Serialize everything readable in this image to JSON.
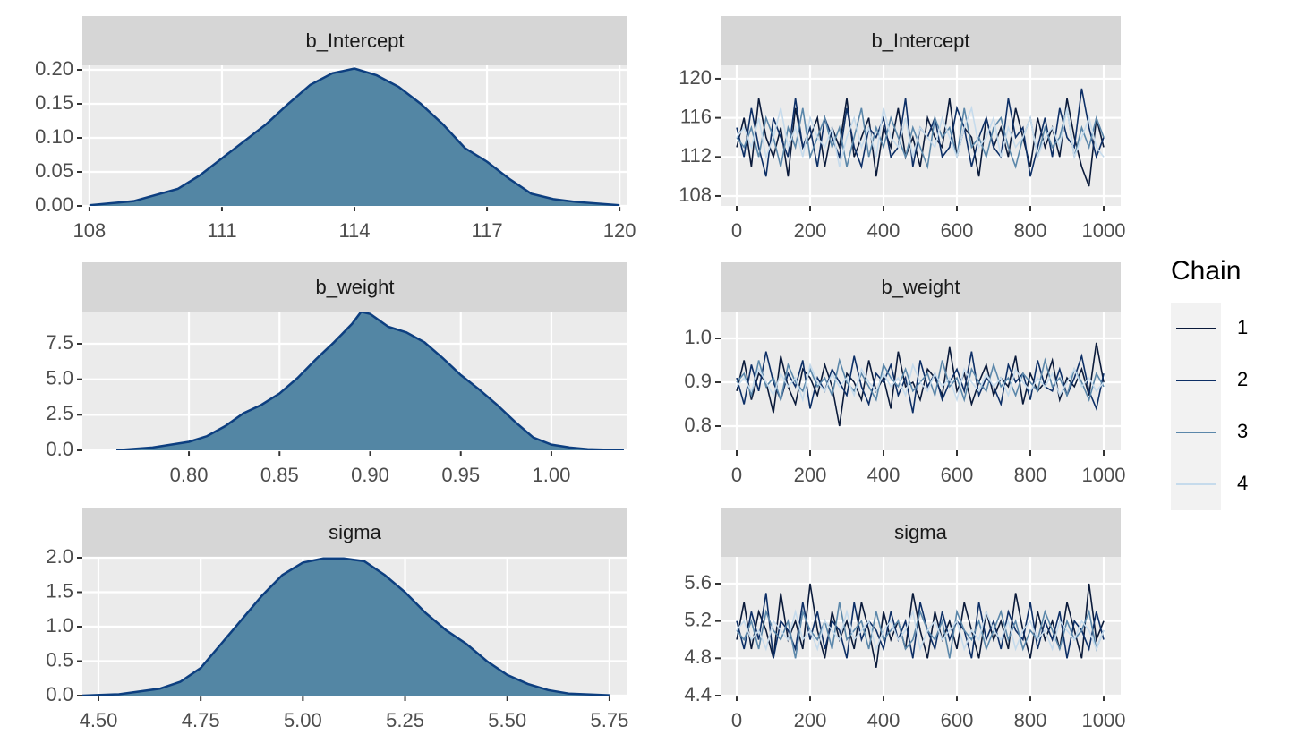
{
  "chart_data": [
    {
      "type": "area",
      "title": "b_Intercept",
      "color": "#5386a4",
      "line_color": "#0d3f80",
      "x": [
        108,
        109,
        110,
        110.5,
        111,
        111.5,
        112,
        112.5,
        113,
        113.5,
        114,
        114.5,
        115,
        115.5,
        116,
        116.5,
        117,
        117.5,
        118,
        118.5,
        119,
        120
      ],
      "values": [
        0.001,
        0.007,
        0.025,
        0.045,
        0.07,
        0.095,
        0.12,
        0.15,
        0.178,
        0.195,
        0.202,
        0.192,
        0.175,
        0.15,
        0.12,
        0.085,
        0.065,
        0.04,
        0.018,
        0.01,
        0.006,
        0.001
      ],
      "xlim": [
        107.84,
        120.18
      ],
      "ylim": [
        0,
        0.2066
      ],
      "xticks": [
        108,
        111,
        114,
        117,
        120
      ],
      "yticks": [
        {
          "value": 0,
          "label": "0.00"
        },
        0.05,
        {
          "value": 0.1,
          "label": "0.10"
        },
        0.15,
        {
          "value": 0.2,
          "label": "0.20"
        }
      ],
      "grid": true
    },
    {
      "type": "line",
      "title": "b_Intercept",
      "legend_title": "Chain",
      "legend": "right",
      "x": [
        0,
        20,
        40,
        60,
        80,
        100,
        120,
        140,
        160,
        180,
        200,
        220,
        240,
        260,
        280,
        300,
        320,
        340,
        360,
        380,
        400,
        420,
        440,
        460,
        480,
        500,
        520,
        540,
        560,
        580,
        600,
        620,
        640,
        660,
        680,
        700,
        720,
        740,
        760,
        780,
        800,
        820,
        840,
        860,
        880,
        900,
        920,
        940,
        960,
        980,
        1000
      ],
      "series": [
        {
          "name": "1",
          "color": "#0a1a3a",
          "values": [
            113,
            116,
            111,
            118,
            114,
            112,
            115,
            110,
            117,
            113,
            114,
            116,
            111,
            115,
            113,
            118,
            112,
            114,
            116,
            110,
            115,
            113,
            117,
            112,
            114,
            111,
            116,
            114,
            113,
            118,
            112,
            115,
            114,
            110,
            116,
            113,
            115,
            112,
            117,
            114,
            111,
            116,
            113,
            115,
            112,
            118,
            114,
            111,
            109,
            116,
            113
          ]
        },
        {
          "name": "2",
          "color": "#0d2f66",
          "values": [
            115,
            112,
            117,
            113,
            110,
            116,
            114,
            112,
            118,
            113,
            115,
            111,
            116,
            114,
            112,
            117,
            113,
            111,
            115,
            114,
            116,
            112,
            113,
            118,
            111,
            115,
            114,
            116,
            112,
            113,
            117,
            115,
            111,
            114,
            116,
            113,
            112,
            118,
            114,
            115,
            110,
            113,
            116,
            112,
            117,
            114,
            113,
            119,
            115,
            112,
            114
          ]
        },
        {
          "name": "3",
          "color": "#5b87aa",
          "values": [
            114,
            113,
            115,
            112,
            116,
            114,
            111,
            115,
            113,
            117,
            112,
            114,
            116,
            113,
            115,
            111,
            114,
            117,
            112,
            115,
            113,
            116,
            114,
            112,
            115,
            113,
            111,
            116,
            114,
            115,
            112,
            117,
            113,
            114,
            112,
            115,
            116,
            113,
            111,
            114,
            116,
            112,
            115,
            113,
            114,
            117,
            112,
            115,
            113,
            116,
            114
          ]
        },
        {
          "name": "4",
          "color": "#c6dbec",
          "values": [
            114,
            115,
            113,
            116,
            112,
            114,
            117,
            113,
            115,
            112,
            116,
            114,
            113,
            115,
            111,
            114,
            116,
            113,
            115,
            112,
            117,
            114,
            113,
            116,
            112,
            115,
            114,
            113,
            116,
            114,
            112,
            115,
            117,
            113,
            114,
            116,
            112,
            115,
            113,
            114,
            116,
            112,
            114,
            115,
            113,
            117,
            112,
            114,
            116,
            113,
            112
          ]
        }
      ],
      "xlim": [
        -43.9,
        1046.3
      ],
      "ylim": [
        106.99,
        121.37
      ],
      "xticks": [
        0,
        200,
        400,
        600,
        800,
        1000
      ],
      "yticks": [
        108,
        112,
        116,
        120
      ],
      "grid": true
    },
    {
      "type": "area",
      "title": "b_weight",
      "color": "#5386a4",
      "line_color": "#0d3f80",
      "x": [
        0.76,
        0.78,
        0.8,
        0.81,
        0.82,
        0.83,
        0.84,
        0.85,
        0.86,
        0.87,
        0.88,
        0.89,
        0.895,
        0.9,
        0.91,
        0.92,
        0.93,
        0.94,
        0.95,
        0.96,
        0.97,
        0.98,
        0.99,
        1.0,
        1.01,
        1.02,
        1.04
      ],
      "values": [
        0.01,
        0.2,
        0.6,
        1.0,
        1.7,
        2.6,
        3.2,
        4.0,
        5.1,
        6.4,
        7.6,
        8.9,
        9.75,
        9.6,
        8.7,
        8.3,
        7.6,
        6.5,
        5.3,
        4.3,
        3.2,
        2.0,
        0.9,
        0.4,
        0.2,
        0.08,
        0.01
      ],
      "xlim": [
        0.7412,
        1.042
      ],
      "ylim": [
        0,
        9.77
      ],
      "xticks": [
        {
          "value": 0.8,
          "label": "0.80"
        },
        0.85,
        {
          "value": 0.9,
          "label": "0.90"
        },
        0.95,
        {
          "value": 1,
          "label": "1.00"
        }
      ],
      "yticks": [
        {
          "value": 0,
          "label": "0.0"
        },
        2.5,
        {
          "value": 5,
          "label": "5.0"
        },
        7.5
      ],
      "grid": true
    },
    {
      "type": "line",
      "title": "b_weight",
      "x": [
        0,
        20,
        40,
        60,
        80,
        100,
        120,
        140,
        160,
        180,
        200,
        220,
        240,
        260,
        280,
        300,
        320,
        340,
        360,
        380,
        400,
        420,
        440,
        460,
        480,
        500,
        520,
        540,
        560,
        580,
        600,
        620,
        640,
        660,
        680,
        700,
        720,
        740,
        760,
        780,
        800,
        820,
        840,
        860,
        880,
        900,
        920,
        940,
        960,
        980,
        1000
      ],
      "series": [
        {
          "color": "#0a1a3a",
          "values": [
            0.88,
            0.95,
            0.86,
            0.92,
            0.9,
            0.83,
            0.96,
            0.89,
            0.85,
            0.93,
            0.91,
            0.87,
            0.94,
            0.89,
            0.8,
            0.92,
            0.9,
            0.86,
            0.95,
            0.88,
            0.91,
            0.84,
            0.97,
            0.89,
            0.9,
            0.86,
            0.93,
            0.91,
            0.87,
            0.98,
            0.88,
            0.92,
            0.85,
            0.9,
            0.94,
            0.87,
            0.91,
            0.89,
            0.96,
            0.85,
            0.92,
            0.88,
            0.9,
            0.95,
            0.86,
            0.91,
            0.89,
            0.93,
            0.87,
            0.99,
            0.9
          ]
        },
        {
          "color": "#0d2f66",
          "values": [
            0.91,
            0.85,
            0.94,
            0.88,
            0.97,
            0.9,
            0.86,
            0.92,
            0.89,
            0.95,
            0.84,
            0.91,
            0.88,
            0.93,
            0.9,
            0.87,
            0.96,
            0.89,
            0.85,
            0.92,
            0.9,
            0.94,
            0.87,
            0.91,
            0.83,
            0.95,
            0.89,
            0.92,
            0.86,
            0.9,
            0.93,
            0.88,
            0.97,
            0.87,
            0.91,
            0.89,
            0.85,
            0.94,
            0.9,
            0.92,
            0.86,
            0.95,
            0.89,
            0.88,
            0.93,
            0.87,
            0.91,
            0.96,
            0.88,
            0.84,
            0.92
          ]
        },
        {
          "color": "#5b87aa",
          "values": [
            0.9,
            0.92,
            0.87,
            0.95,
            0.89,
            0.91,
            0.86,
            0.94,
            0.9,
            0.88,
            0.93,
            0.89,
            0.91,
            0.87,
            0.95,
            0.9,
            0.88,
            0.92,
            0.89,
            0.86,
            0.94,
            0.91,
            0.89,
            0.93,
            0.88,
            0.9,
            0.92,
            0.87,
            0.95,
            0.89,
            0.91,
            0.86,
            0.93,
            0.9,
            0.88,
            0.94,
            0.89,
            0.91,
            0.87,
            0.92,
            0.9,
            0.88,
            0.95,
            0.89,
            0.91,
            0.87,
            0.93,
            0.9,
            0.86,
            0.92,
            0.89
          ]
        },
        {
          "color": "#c6dbec",
          "values": [
            0.89,
            0.91,
            0.88,
            0.93,
            0.9,
            0.87,
            0.92,
            0.89,
            0.91,
            0.86,
            0.94,
            0.9,
            0.88,
            0.92,
            0.89,
            0.91,
            0.87,
            0.93,
            0.9,
            0.88,
            0.92,
            0.89,
            0.91,
            0.87,
            0.94,
            0.9,
            0.88,
            0.92,
            0.89,
            0.91,
            0.86,
            0.93,
            0.9,
            0.88,
            0.92,
            0.89,
            0.91,
            0.87,
            0.93,
            0.9,
            0.88,
            0.91,
            0.89,
            0.92,
            0.87,
            0.9,
            0.93,
            0.89,
            0.91,
            0.88,
            0.9
          ]
        }
      ],
      "xlim": [
        -43.9,
        1046.3
      ],
      "ylim": [
        0.7449,
        1.0612
      ],
      "xticks": [
        0,
        200,
        400,
        600,
        800,
        1000
      ],
      "yticks": [
        0.8,
        0.9,
        {
          "value": 1,
          "label": "1.0"
        }
      ],
      "grid": true
    },
    {
      "type": "area",
      "title": "sigma",
      "color": "#5386a4",
      "line_color": "#0d3f80",
      "x": [
        4.46,
        4.55,
        4.65,
        4.7,
        4.75,
        4.8,
        4.85,
        4.9,
        4.95,
        5.0,
        5.05,
        5.1,
        5.15,
        5.2,
        5.25,
        5.3,
        5.35,
        5.4,
        5.45,
        5.5,
        5.55,
        5.6,
        5.65,
        5.75
      ],
      "values": [
        0.0,
        0.02,
        0.1,
        0.2,
        0.4,
        0.75,
        1.1,
        1.45,
        1.75,
        1.93,
        1.99,
        1.99,
        1.95,
        1.75,
        1.5,
        1.2,
        0.95,
        0.75,
        0.5,
        0.3,
        0.17,
        0.08,
        0.03,
        0.005
      ],
      "xlim": [
        4.4606,
        5.794
      ],
      "ylim": [
        0,
        2.013
      ],
      "xticks": [
        {
          "value": 4.5,
          "label": "4.50"
        },
        4.75,
        {
          "value": 5,
          "label": "5.00"
        },
        5.25,
        {
          "value": 5.5,
          "label": "5.50"
        },
        5.75
      ],
      "yticks": [
        {
          "value": 0,
          "label": "0.0"
        },
        0.5,
        {
          "value": 1,
          "label": "1.0"
        },
        1.5,
        {
          "value": 2,
          "label": "2.0"
        }
      ],
      "grid": true
    },
    {
      "type": "line",
      "title": "sigma",
      "x": [
        0,
        20,
        40,
        60,
        80,
        100,
        120,
        140,
        160,
        180,
        200,
        220,
        240,
        260,
        280,
        300,
        320,
        340,
        360,
        380,
        400,
        420,
        440,
        460,
        480,
        500,
        520,
        540,
        560,
        580,
        600,
        620,
        640,
        660,
        680,
        700,
        720,
        740,
        760,
        780,
        800,
        820,
        840,
        860,
        880,
        900,
        920,
        940,
        960,
        980,
        1000
      ],
      "series": [
        {
          "color": "#0a1a3a",
          "values": [
            5.0,
            5.4,
            4.9,
            5.3,
            5.1,
            4.8,
            5.5,
            5.0,
            5.2,
            4.9,
            5.6,
            5.1,
            4.8,
            5.3,
            5.0,
            5.2,
            4.9,
            5.4,
            5.1,
            4.7,
            5.3,
            5.0,
            5.2,
            4.9,
            5.5,
            5.1,
            4.8,
            5.3,
            5.0,
            5.2,
            4.9,
            5.4,
            5.1,
            4.8,
            5.3,
            5.0,
            5.2,
            4.9,
            5.5,
            5.1,
            4.8,
            5.3,
            5.0,
            5.2,
            4.9,
            5.4,
            5.1,
            4.8,
            5.6,
            5.0,
            5.2
          ]
        },
        {
          "color": "#0d2f66",
          "values": [
            5.2,
            4.9,
            5.3,
            5.0,
            5.5,
            4.8,
            5.2,
            5.1,
            4.9,
            5.4,
            5.0,
            5.3,
            4.9,
            5.2,
            5.1,
            4.8,
            5.4,
            5.0,
            5.2,
            5.1,
            4.9,
            5.3,
            5.0,
            5.2,
            4.8,
            5.4,
            5.1,
            4.9,
            5.3,
            5.0,
            5.2,
            5.1,
            4.8,
            5.4,
            5.0,
            5.2,
            4.9,
            5.3,
            5.1,
            5.0,
            5.4,
            4.9,
            5.2,
            5.0,
            5.3,
            4.8,
            5.2,
            5.1,
            4.9,
            5.3,
            5.0
          ]
        },
        {
          "color": "#5b87aa",
          "values": [
            5.1,
            5.0,
            5.2,
            4.9,
            5.3,
            5.1,
            5.0,
            5.2,
            4.8,
            5.3,
            5.1,
            5.0,
            5.2,
            4.9,
            5.4,
            5.0,
            5.1,
            5.2,
            4.9,
            5.3,
            5.0,
            5.1,
            5.2,
            4.9,
            5.0,
            5.3,
            5.1,
            5.0,
            5.2,
            4.8,
            5.3,
            5.1,
            5.0,
            5.2,
            4.9,
            5.1,
            5.3,
            5.0,
            5.2,
            4.9,
            5.1,
            5.0,
            5.3,
            5.1,
            4.9,
            5.2,
            5.0,
            5.1,
            5.3,
            4.9,
            5.1
          ]
        },
        {
          "color": "#c6dbec",
          "values": [
            5.1,
            5.2,
            5.0,
            5.1,
            4.9,
            5.2,
            5.1,
            5.0,
            5.3,
            5.0,
            5.1,
            4.9,
            5.2,
            5.1,
            5.0,
            5.3,
            5.0,
            5.1,
            5.2,
            4.9,
            5.1,
            5.2,
            5.0,
            5.1,
            5.3,
            4.9,
            5.1,
            5.2,
            5.0,
            5.1,
            5.2,
            4.9,
            5.1,
            5.0,
            5.3,
            5.1,
            5.0,
            5.2,
            4.9,
            5.1,
            5.2,
            5.0,
            5.1,
            4.9,
            5.2,
            5.1,
            5.0,
            5.2,
            5.1,
            4.9,
            5.1
          ]
        }
      ],
      "xlim": [
        -43.9,
        1046.3
      ],
      "ylim": [
        4.4,
        5.888
      ],
      "xticks": [
        0,
        200,
        400,
        600,
        800,
        1000
      ],
      "yticks": [
        4.4,
        4.8,
        5.2,
        5.6
      ],
      "grid": true
    }
  ]
}
